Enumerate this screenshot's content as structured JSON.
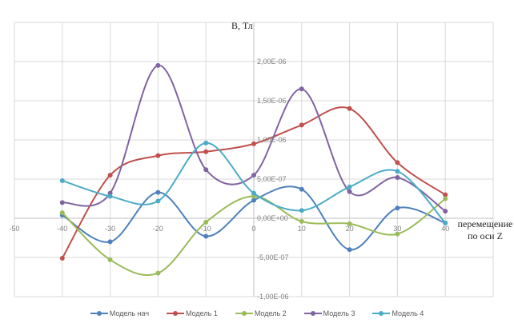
{
  "chart_data": {
    "type": "line",
    "title": "",
    "ylabel": "B, Тл",
    "xlabel_lines": [
      "перемещение",
      "по оси Z"
    ],
    "xlim": [
      -50,
      50
    ],
    "ylim": [
      -1e-06,
      2.5e-06
    ],
    "x_ticks": [
      -50,
      -40,
      -30,
      -20,
      -10,
      0,
      10,
      20,
      30,
      40
    ],
    "x_tick_labels": [
      "-50",
      "-40",
      "-30",
      "-20",
      "-10",
      "0",
      "10",
      "20",
      "30",
      "40"
    ],
    "y_ticks": [
      -1e-06,
      -5e-07,
      0,
      5e-07,
      1e-06,
      1.5e-06,
      2e-06,
      2.5e-06
    ],
    "y_tick_labels": [
      "-1,00E-06",
      "-5,00E-07",
      "0,00E+00",
      "5,00E-07",
      "1,00E-06",
      "1,50E-06",
      "2,00E-06",
      ""
    ],
    "grid": true,
    "smooth": true,
    "legend_position": "bottom",
    "x": [
      -40,
      -30,
      -20,
      -10,
      0,
      10,
      20,
      30,
      40
    ],
    "series": [
      {
        "name": "Модель нач",
        "color": "#4f81bd",
        "values": [
          4e-08,
          -3e-07,
          3.3e-07,
          -2.3e-07,
          2.3e-07,
          3.7e-07,
          -4e-07,
          1.3e-07,
          -6e-08
        ]
      },
      {
        "name": "Модель 1",
        "color": "#c0504d",
        "values": [
          -5.1e-07,
          5.5e-07,
          8e-07,
          8.5e-07,
          9.5e-07,
          1.19e-06,
          1.4e-06,
          7.1e-07,
          3e-07
        ]
      },
      {
        "name": "Модель 2",
        "color": "#9bbb59",
        "values": [
          7e-08,
          -5.3e-07,
          -7e-07,
          -5e-08,
          2.8e-07,
          -4e-08,
          -7e-08,
          -2e-07,
          2.5e-07
        ]
      },
      {
        "name": "Модель 3",
        "color": "#8064a2",
        "values": [
          2e-07,
          3.2e-07,
          1.95e-06,
          6.2e-07,
          5.5e-07,
          1.65e-06,
          3.4e-07,
          5.2e-07,
          9e-08
        ]
      },
      {
        "name": "Модель 4",
        "color": "#4bacc6",
        "values": [
          4.8e-07,
          2.8e-07,
          2.2e-07,
          9.6e-07,
          3.2e-07,
          1e-07,
          4e-07,
          6e-07,
          -6e-08
        ]
      }
    ]
  }
}
